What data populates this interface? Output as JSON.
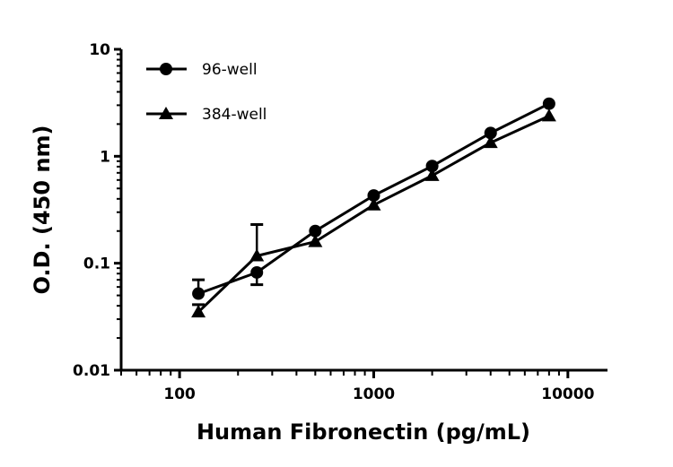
{
  "chart_data": {
    "type": "line",
    "title": "",
    "xlabel": "Human Fibronectin (pg/mL)",
    "ylabel": "O.D. (450 nm)",
    "xscale": "log",
    "yscale": "log",
    "xlim": [
      50,
      16000
    ],
    "ylim": [
      0.01,
      10
    ],
    "xticks": [
      100,
      1000,
      10000
    ],
    "xtick_labels": [
      "100",
      "1000",
      "10000"
    ],
    "yticks": [
      0.01,
      0.1,
      1,
      10
    ],
    "ytick_labels": [
      "0.01",
      "0.1",
      "1",
      "10"
    ],
    "grid": false,
    "legend_position": "top-left",
    "x": [
      125,
      250,
      500,
      1000,
      2000,
      4000,
      8000
    ],
    "series": [
      {
        "name": "96-well",
        "marker": "circle",
        "color": "#000000",
        "values": [
          0.052,
          0.082,
          0.2,
          0.43,
          0.81,
          1.65,
          3.1
        ],
        "error_upper": [
          0.07,
          null,
          null,
          null,
          null,
          null,
          null
        ],
        "error_lower": [
          null,
          0.063,
          null,
          null,
          null,
          null,
          null
        ]
      },
      {
        "name": "384-well",
        "marker": "triangle",
        "color": "#000000",
        "values": [
          0.035,
          0.117,
          0.159,
          0.35,
          0.66,
          1.34,
          2.38
        ],
        "error_upper": [
          0.041,
          0.23,
          null,
          null,
          null,
          null,
          null
        ],
        "error_lower": [
          null,
          null,
          null,
          null,
          null,
          null,
          null
        ]
      }
    ]
  }
}
